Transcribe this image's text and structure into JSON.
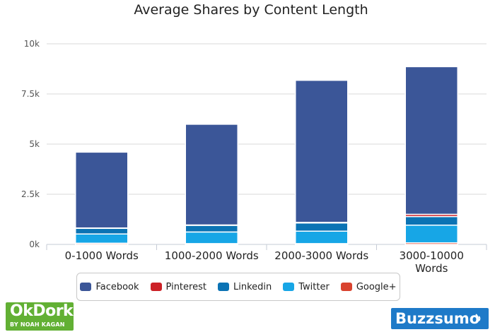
{
  "chart_data": {
    "type": "bar",
    "stacked": true,
    "title": "Average Shares by Content Length",
    "categories": [
      "0-1000 Words",
      "1000-2000 Words",
      "2000-3000 Words",
      "3000-10000 Words"
    ],
    "series": [
      {
        "name": "Google+",
        "color": "#d9432f",
        "values": [
          60,
          40,
          40,
          80
        ]
      },
      {
        "name": "Twitter",
        "color": "#17a6e6",
        "values": [
          460,
          580,
          620,
          880
        ]
      },
      {
        "name": "Linkedin",
        "color": "#0b73b4",
        "values": [
          280,
          330,
          410,
          430
        ]
      },
      {
        "name": "Pinterest",
        "color": "#cc2127",
        "values": [
          20,
          20,
          30,
          110
        ]
      },
      {
        "name": "Facebook",
        "color": "#3b5698",
        "values": [
          3780,
          5020,
          7080,
          7360
        ]
      }
    ],
    "legend_order": [
      "Facebook",
      "Pinterest",
      "Linkedin",
      "Twitter",
      "Google+"
    ],
    "y_ticks": [
      {
        "value": 0,
        "label": "0k"
      },
      {
        "value": 2500,
        "label": "2.5k"
      },
      {
        "value": 5000,
        "label": "5k"
      },
      {
        "value": 7500,
        "label": "7.5k"
      },
      {
        "value": 10000,
        "label": "10k"
      }
    ],
    "ylim": [
      0,
      10000
    ],
    "grid": true,
    "legend_position": "bottom"
  },
  "branding": {
    "left_logo": "OkDork",
    "left_logo_sub": "BY NOAH KAGAN",
    "right_logo": "Buzzsumo"
  }
}
